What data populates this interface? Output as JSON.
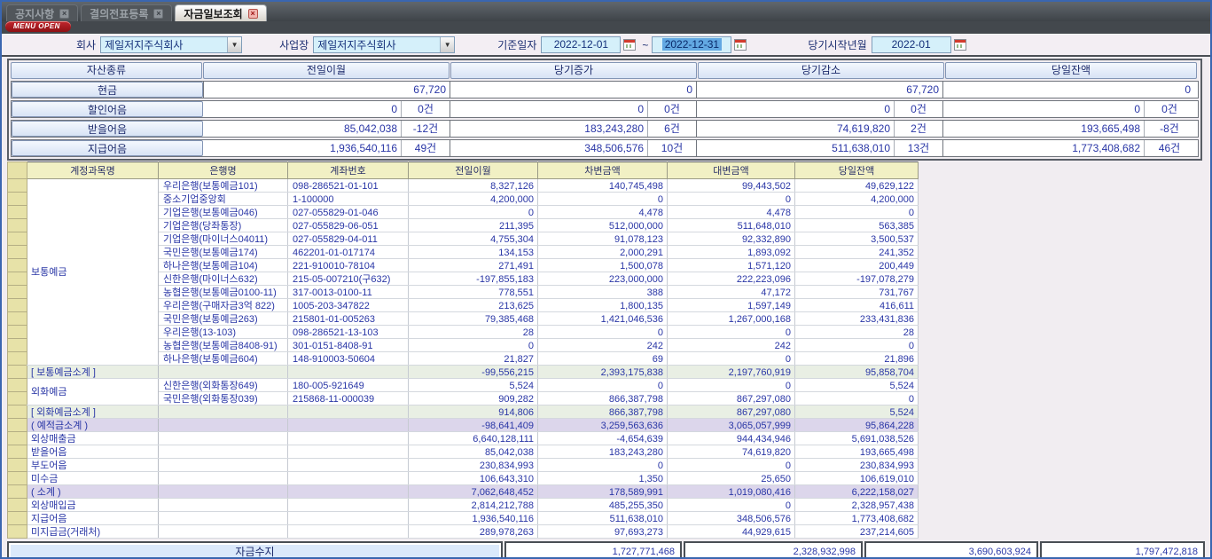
{
  "colors": {
    "menu_open_red": "#c1272d",
    "selection_blue": "#62a8e2",
    "input_cyan": "#d5f0fa",
    "subtotal_green": "#e9efe4",
    "subtotal_purple": "#dcd6eb"
  },
  "tabs": [
    {
      "label": "공지사항",
      "close_icon": "×",
      "active": false
    },
    {
      "label": "결의전표등록",
      "close_icon": "×",
      "active": false
    },
    {
      "label": "자금일보조회",
      "close_icon": "×",
      "active": true
    }
  ],
  "menu_open_label": "MENU OPEN",
  "filters": {
    "company_label": "회사",
    "company_value": "제일저지주식회사",
    "site_label": "사업장",
    "site_value": "제일저지주식회사",
    "base_date_label": "기준일자",
    "base_date_from": "2022-12-01",
    "range_separator": "~",
    "base_date_to": "2022-12-31",
    "period_start_label": "당기시작년월",
    "period_start_value": "2022-01",
    "dropdown_icon": "▼"
  },
  "summary_table": {
    "headers": [
      "자산종류",
      "전일이월",
      "당기증가",
      "당기감소",
      "당일잔액"
    ],
    "rows": [
      {
        "label": "현금",
        "values": [
          {
            "amount": "67,720",
            "count": null
          },
          {
            "amount": "0",
            "count": null
          },
          {
            "amount": "67,720",
            "count": null
          },
          {
            "amount": "0",
            "count": null
          }
        ]
      },
      {
        "label": "할인어음",
        "values": [
          {
            "amount": "0",
            "count": "0건"
          },
          {
            "amount": "0",
            "count": "0건"
          },
          {
            "amount": "0",
            "count": "0건"
          },
          {
            "amount": "0",
            "count": "0건"
          }
        ]
      },
      {
        "label": "받을어음",
        "values": [
          {
            "amount": "85,042,038",
            "count": "-12건"
          },
          {
            "amount": "183,243,280",
            "count": "6건"
          },
          {
            "amount": "74,619,820",
            "count": "2건"
          },
          {
            "amount": "193,665,498",
            "count": "-8건"
          }
        ]
      },
      {
        "label": "지급어음",
        "values": [
          {
            "amount": "1,936,540,116",
            "count": "49건"
          },
          {
            "amount": "348,506,576",
            "count": "10건"
          },
          {
            "amount": "511,638,010",
            "count": "13건"
          },
          {
            "amount": "1,773,408,682",
            "count": "46건"
          }
        ]
      }
    ]
  },
  "main_table": {
    "headers": [
      "계정과목명",
      "은행명",
      "계좌번호",
      "전일이월",
      "차변금액",
      "대변금액",
      "당일잔액"
    ],
    "rows": [
      {
        "type": "data",
        "account": "보통예금",
        "rowspan": 14,
        "bank": "우리은행(보통예금101)",
        "account_no": "098-286521-01-101",
        "values": [
          "8,327,126",
          "140,745,498",
          "99,443,502",
          "49,629,122"
        ]
      },
      {
        "type": "data",
        "bank": "중소기업중앙회",
        "account_no": "1-100000",
        "values": [
          "4,200,000",
          "0",
          "0",
          "4,200,000"
        ]
      },
      {
        "type": "data",
        "bank": "기업은행(보통예금046)",
        "account_no": "027-055829-01-046",
        "values": [
          "0",
          "4,478",
          "4,478",
          "0"
        ]
      },
      {
        "type": "data",
        "bank": "기업은행(당좌통장)",
        "account_no": "027-055829-06-051",
        "values": [
          "211,395",
          "512,000,000",
          "511,648,010",
          "563,385"
        ]
      },
      {
        "type": "data",
        "bank": "기업은행(마이너스04011)",
        "account_no": "027-055829-04-011",
        "values": [
          "4,755,304",
          "91,078,123",
          "92,332,890",
          "3,500,537"
        ]
      },
      {
        "type": "data",
        "bank": "국민은행(보통예금174)",
        "account_no": "462201-01-017174",
        "values": [
          "134,153",
          "2,000,291",
          "1,893,092",
          "241,352"
        ]
      },
      {
        "type": "data",
        "bank": "하나은행(보통예금104)",
        "account_no": "221-910010-78104",
        "values": [
          "271,491",
          "1,500,078",
          "1,571,120",
          "200,449"
        ]
      },
      {
        "type": "data",
        "bank": "신한은행(마이너스632)",
        "account_no": "215-05-007210(구632)",
        "values": [
          "-197,855,183",
          "223,000,000",
          "222,223,096",
          "-197,078,279"
        ]
      },
      {
        "type": "data",
        "bank": "농협은행(보통예금0100-11)",
        "account_no": "317-0013-0100-11",
        "values": [
          "778,551",
          "388",
          "47,172",
          "731,767"
        ]
      },
      {
        "type": "data",
        "bank": "우리은행(구매자금3억 822)",
        "account_no": "1005-203-347822",
        "values": [
          "213,625",
          "1,800,135",
          "1,597,149",
          "416,611"
        ]
      },
      {
        "type": "data",
        "bank": "국민은행(보통예금263)",
        "account_no": "215801-01-005263",
        "values": [
          "79,385,468",
          "1,421,046,536",
          "1,267,000,168",
          "233,431,836"
        ]
      },
      {
        "type": "data",
        "bank": "우리은행(13-103)",
        "account_no": "098-286521-13-103",
        "values": [
          "28",
          "0",
          "0",
          "28"
        ]
      },
      {
        "type": "data",
        "bank": "농협은행(보통예금8408-91)",
        "account_no": "301-0151-8408-91",
        "values": [
          "0",
          "242",
          "242",
          "0"
        ]
      },
      {
        "type": "data",
        "bank": "하나은행(보통예금604)",
        "account_no": "148-910003-50604",
        "values": [
          "21,827",
          "69",
          "0",
          "21,896"
        ]
      },
      {
        "type": "sub_green",
        "account": "[ 보통예금소계 ]",
        "bank": "",
        "account_no": "",
        "values": [
          "-99,556,215",
          "2,393,175,838",
          "2,197,760,919",
          "95,858,704"
        ]
      },
      {
        "type": "data",
        "account": "외화예금",
        "rowspan": 2,
        "bank": "신한은행(외화통장649)",
        "account_no": "180-005-921649",
        "values": [
          "5,524",
          "0",
          "0",
          "5,524"
        ]
      },
      {
        "type": "data",
        "bank": "국민은행(외화통장039)",
        "account_no": "215868-11-000039",
        "values": [
          "909,282",
          "866,387,798",
          "867,297,080",
          "0"
        ]
      },
      {
        "type": "sub_green",
        "account": "[ 외화예금소계 ]",
        "bank": "",
        "account_no": "",
        "values": [
          "914,806",
          "866,387,798",
          "867,297,080",
          "5,524"
        ]
      },
      {
        "type": "sub_purple",
        "account": "( 예적금소계 )",
        "bank": "",
        "account_no": "",
        "values": [
          "-98,641,409",
          "3,259,563,636",
          "3,065,057,999",
          "95,864,228"
        ]
      },
      {
        "type": "data",
        "account": "외상매출금",
        "bank": "",
        "account_no": "",
        "values": [
          "6,640,128,111",
          "-4,654,639",
          "944,434,946",
          "5,691,038,526"
        ]
      },
      {
        "type": "data",
        "account": "받을어음",
        "bank": "",
        "account_no": "",
        "values": [
          "85,042,038",
          "183,243,280",
          "74,619,820",
          "193,665,498"
        ]
      },
      {
        "type": "data",
        "account": "부도어음",
        "bank": "",
        "account_no": "",
        "values": [
          "230,834,993",
          "0",
          "0",
          "230,834,993"
        ]
      },
      {
        "type": "data",
        "account": "미수금",
        "bank": "",
        "account_no": "",
        "values": [
          "106,643,310",
          "1,350",
          "25,650",
          "106,619,010"
        ]
      },
      {
        "type": "sub_purple",
        "account": "( 소계 )",
        "bank": "",
        "account_no": "",
        "values": [
          "7,062,648,452",
          "178,589,991",
          "1,019,080,416",
          "6,222,158,027"
        ]
      },
      {
        "type": "data",
        "account": "외상매입금",
        "bank": "",
        "account_no": "",
        "values": [
          "2,814,212,788",
          "485,255,350",
          "0",
          "2,328,957,438"
        ]
      },
      {
        "type": "data",
        "account": "지급어음",
        "bank": "",
        "account_no": "",
        "values": [
          "1,936,540,116",
          "511,638,010",
          "348,506,576",
          "1,773,408,682"
        ]
      },
      {
        "type": "data",
        "account": "미지급금(거래처)",
        "bank": "",
        "account_no": "",
        "values": [
          "289,978,263",
          "97,693,273",
          "44,929,615",
          "237,214,605"
        ]
      }
    ]
  },
  "footer": {
    "label": "자금수지",
    "values": [
      "1,727,771,468",
      "2,328,932,998",
      "3,690,603,924",
      "1,797,472,818"
    ]
  }
}
